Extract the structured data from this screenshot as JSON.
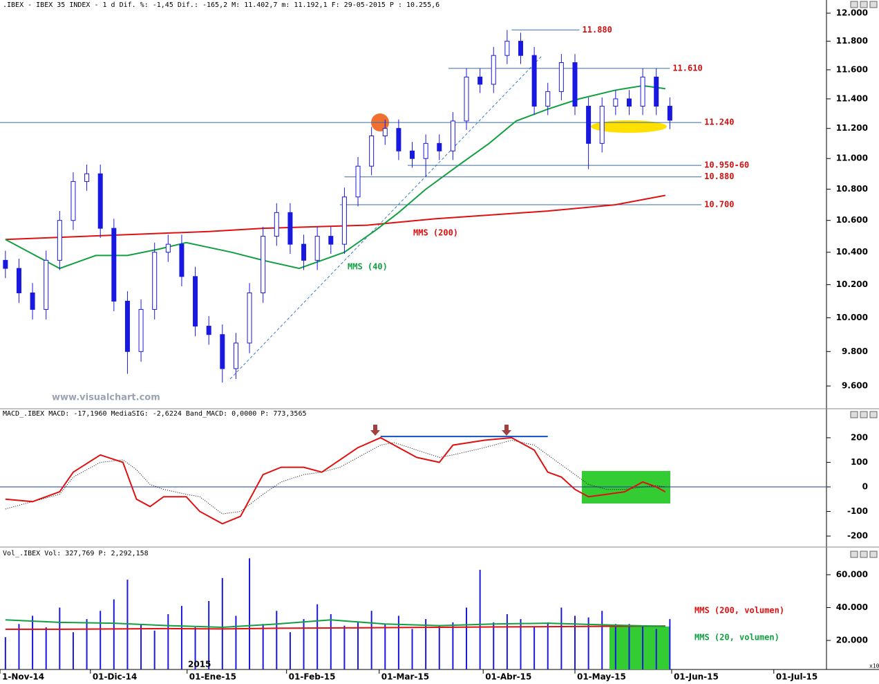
{
  "chart_data": [
    {
      "type": "candlestick",
      "title": ".IBEX - IBEX 35 INDEX -  1 d Dif. %: -1,45 Dif.: -165,2 M: 11.402,7 m: 11.192,1 F: 29-05-2015",
      "price_label": "P : 10.255,6",
      "watermark": "www.visualchart.com",
      "log": true,
      "xlim": [
        -1.2,
        181.5
      ],
      "ylim": [
        9474,
        12025
      ],
      "yticks": [
        {
          "value": 9600,
          "label": "9.600"
        },
        {
          "value": 9800,
          "label": "9.800"
        },
        {
          "value": 10000,
          "label": "10.000"
        },
        {
          "value": 10200,
          "label": "10.200"
        },
        {
          "value": 10400,
          "label": "10.400"
        },
        {
          "value": 10600,
          "label": "10.600"
        },
        {
          "value": 10800,
          "label": "10.800"
        },
        {
          "value": 11000,
          "label": "11.000"
        },
        {
          "value": 11200,
          "label": "11.200"
        },
        {
          "value": 11400,
          "label": "11.400"
        },
        {
          "value": 11600,
          "label": "11.600"
        },
        {
          "value": 11800,
          "label": "11.800"
        },
        {
          "value": 12000,
          "label": "12.000"
        }
      ],
      "color": "#1818e0",
      "x": [
        0,
        3,
        6,
        9,
        12,
        15,
        18,
        21,
        24,
        27,
        30,
        33,
        36,
        39,
        42,
        45,
        48,
        51,
        54,
        57,
        60,
        63,
        66,
        69,
        72,
        75,
        78,
        81,
        84,
        87,
        90,
        93,
        96,
        99,
        102,
        105,
        108,
        111,
        114,
        117,
        120,
        123,
        126,
        129,
        132,
        135,
        138,
        141,
        144,
        147
      ],
      "open": [
        10350,
        10300,
        10150,
        10050,
        10350,
        10600,
        10850,
        10900,
        10550,
        10100,
        9800,
        10050,
        10400,
        10450,
        10250,
        9950,
        9900,
        9700,
        9850,
        10150,
        10500,
        10650,
        10450,
        10350,
        10500,
        10450,
        10750,
        10950,
        11150,
        11200,
        11050,
        11000,
        11100,
        11050,
        11250,
        11550,
        11500,
        11700,
        11800,
        11700,
        11350,
        11450,
        11650,
        11350,
        11100,
        11350,
        11400,
        11350,
        11550,
        11350
      ],
      "high": [
        10410,
        10360,
        10210,
        10410,
        10660,
        10910,
        10960,
        10960,
        10610,
        10160,
        10110,
        10460,
        10510,
        10510,
        10310,
        10010,
        9960,
        9910,
        10210,
        10560,
        10710,
        10710,
        10510,
        10560,
        10560,
        10810,
        11010,
        11210,
        11260,
        11260,
        11110,
        11160,
        11160,
        11310,
        11610,
        11610,
        11760,
        11880,
        11860,
        11760,
        11510,
        11710,
        11710,
        11410,
        11410,
        11460,
        11460,
        11610,
        11610,
        11410
      ],
      "low": [
        10240,
        10090,
        9990,
        9990,
        10290,
        10540,
        10790,
        10490,
        10040,
        9670,
        9740,
        9990,
        10340,
        10190,
        9890,
        9840,
        9620,
        9640,
        9790,
        10090,
        10440,
        10390,
        10290,
        10290,
        10390,
        10390,
        10690,
        10890,
        11090,
        10990,
        10940,
        10880,
        10990,
        10990,
        11190,
        11440,
        11440,
        11640,
        11640,
        11290,
        11290,
        11390,
        11290,
        10930,
        11040,
        11290,
        11290,
        11290,
        11290,
        11195
      ],
      "close": [
        10300,
        10150,
        10050,
        10350,
        10600,
        10850,
        10900,
        10550,
        10100,
        9800,
        10050,
        10400,
        10450,
        10250,
        9950,
        9900,
        9700,
        9850,
        10150,
        10500,
        10650,
        10450,
        10350,
        10500,
        10450,
        10750,
        10950,
        11150,
        11200,
        11050,
        11000,
        11100,
        11050,
        11250,
        11550,
        11500,
        11700,
        11800,
        11700,
        11350,
        11450,
        11650,
        11350,
        11100,
        11350,
        11400,
        11350,
        11550,
        11350,
        11255
      ],
      "series": [
        {
          "name": "MMS (200)",
          "color": "#e01010",
          "x": [
            0,
            45,
            57,
            80,
            95,
            110,
            120,
            135,
            146
          ],
          "values": [
            10480,
            10530,
            10550,
            10570,
            10610,
            10640,
            10660,
            10700,
            10760
          ]
        },
        {
          "name": "MMS (40)",
          "color": "#10a040",
          "x": [
            0,
            12,
            20,
            27,
            34,
            40,
            50,
            57,
            65,
            75,
            82,
            87,
            93,
            100,
            107,
            113,
            120,
            127,
            135,
            141,
            146
          ],
          "values": [
            10480,
            10300,
            10380,
            10380,
            10420,
            10460,
            10400,
            10350,
            10300,
            10400,
            10540,
            10650,
            10800,
            10950,
            11100,
            11250,
            11330,
            11400,
            11460,
            11490,
            11470
          ]
        }
      ],
      "levels": [
        {
          "value": 11880,
          "label": "11.880",
          "from": 112,
          "to": 127
        },
        {
          "value": 11610,
          "label": "11.610",
          "from": 98,
          "to": 147
        },
        {
          "value": 11240,
          "label": "11.240",
          "from": -1.2,
          "to": 154
        },
        {
          "value": 10955,
          "label": "10.950-60",
          "from": 89,
          "to": 154
        },
        {
          "value": 10880,
          "label": "10.880",
          "from": 75,
          "to": 154
        },
        {
          "value": 10700,
          "label": "10.700",
          "from": 74,
          "to": 154
        }
      ],
      "level_color": "#3a6aa8",
      "label_color": "#d01010"
    },
    {
      "type": "line",
      "title": "MACD_.IBEX MACD: -17,1960 MediaSIG: -2,6224 Band_MACD: 0,0000",
      "price_label": "P: 773,3565",
      "xlim": [
        -1.2,
        181.5
      ],
      "ylim": [
        -242,
        273
      ],
      "yticks": [
        -200,
        -100,
        0,
        100,
        200
      ],
      "zero_line": true,
      "x": [
        0,
        6,
        12,
        15,
        21,
        26,
        29,
        32,
        35,
        40,
        43,
        48,
        52,
        57,
        61,
        66,
        70,
        74,
        78,
        83,
        86,
        91,
        96,
        99,
        106,
        112,
        117,
        120,
        123,
        126,
        129,
        133,
        137,
        141,
        144,
        146
      ],
      "series": [
        {
          "color": "#000000",
          "style": "dotted",
          "values": [
            -90,
            -60,
            -30,
            40,
            100,
            110,
            70,
            10,
            -10,
            -30,
            -40,
            -110,
            -100,
            -30,
            20,
            50,
            60,
            80,
            120,
            170,
            180,
            150,
            120,
            130,
            160,
            190,
            170,
            130,
            90,
            50,
            10,
            -10,
            -10,
            0,
            5,
            0
          ]
        },
        {
          "color": "#e01010",
          "style": "solid",
          "values": [
            -50,
            -60,
            -20,
            60,
            130,
            100,
            -50,
            -80,
            -40,
            -40,
            -100,
            -150,
            -120,
            50,
            80,
            80,
            60,
            110,
            160,
            200,
            170,
            120,
            100,
            170,
            190,
            200,
            150,
            60,
            40,
            -10,
            -40,
            -30,
            -20,
            20,
            0,
            -20
          ]
        }
      ],
      "resistance": {
        "value": 205,
        "from": 83,
        "to": 120,
        "color": "#1050c0"
      }
    },
    {
      "type": "bar",
      "title": "Vol_.IBEX Vol: 327,769",
      "price_label": "P: 2,292,158",
      "year_label": "2015",
      "scale_note": "x10",
      "color": "#1818e0",
      "xlim": [
        -1.2,
        181.5
      ],
      "ylim": [
        2316,
        69684
      ],
      "yticks": [
        {
          "value": 20000,
          "label": "20.000"
        },
        {
          "value": 40000,
          "label": "40.000"
        },
        {
          "value": 60000,
          "label": "60.000"
        }
      ],
      "xticks": [
        {
          "value": -1.2,
          "label": "1-Nov-14"
        },
        {
          "value": 18.8,
          "label": "01-Dic-14"
        },
        {
          "value": 40.2,
          "label": "01-Ene-15"
        },
        {
          "value": 62.2,
          "label": "01-Feb-15"
        },
        {
          "value": 82.7,
          "label": "01-Mar-15"
        },
        {
          "value": 105.7,
          "label": "01-Abr-15"
        },
        {
          "value": 126,
          "label": "01-May-15"
        },
        {
          "value": 147.4,
          "label": "01-Jun-15"
        },
        {
          "value": 170,
          "label": "01-Jul-15"
        }
      ],
      "x": [
        0,
        3,
        6,
        9,
        12,
        15,
        18,
        21,
        24,
        27,
        30,
        33,
        36,
        39,
        42,
        45,
        48,
        51,
        54,
        57,
        60,
        63,
        66,
        69,
        72,
        75,
        78,
        81,
        84,
        87,
        90,
        93,
        96,
        99,
        102,
        105,
        108,
        111,
        114,
        117,
        120,
        123,
        126,
        129,
        132,
        135,
        138,
        141,
        144,
        147
      ],
      "values": [
        22000,
        30000,
        35000,
        28000,
        40000,
        25000,
        33000,
        38000,
        45000,
        57000,
        30000,
        26000,
        36000,
        41000,
        28000,
        44000,
        58000,
        35000,
        70000,
        30000,
        38000,
        25000,
        33000,
        42000,
        36000,
        29000,
        31000,
        38000,
        30000,
        35000,
        27000,
        33000,
        29000,
        31000,
        40000,
        63000,
        31000,
        36000,
        33000,
        28000,
        31000,
        40000,
        35000,
        34000,
        38000,
        30000,
        30000,
        29000,
        27000,
        33000
      ],
      "series": [
        {
          "name": "MMS (200, volumen)",
          "color": "#e01010",
          "x": [
            0,
            12,
            24,
            36,
            48,
            60,
            72,
            84,
            96,
            108,
            120,
            132,
            146
          ],
          "values": [
            26800,
            26800,
            27000,
            27200,
            27000,
            27400,
            27600,
            27800,
            28000,
            28200,
            28400,
            28600,
            28800
          ]
        },
        {
          "name": "MMS (20, volumen)",
          "color": "#10a040",
          "x": [
            0,
            12,
            24,
            36,
            48,
            60,
            72,
            84,
            96,
            108,
            120,
            132,
            146
          ],
          "values": [
            32500,
            31000,
            30500,
            29000,
            28000,
            30000,
            32500,
            30000,
            29000,
            30000,
            30500,
            29500,
            28500
          ]
        }
      ]
    }
  ]
}
